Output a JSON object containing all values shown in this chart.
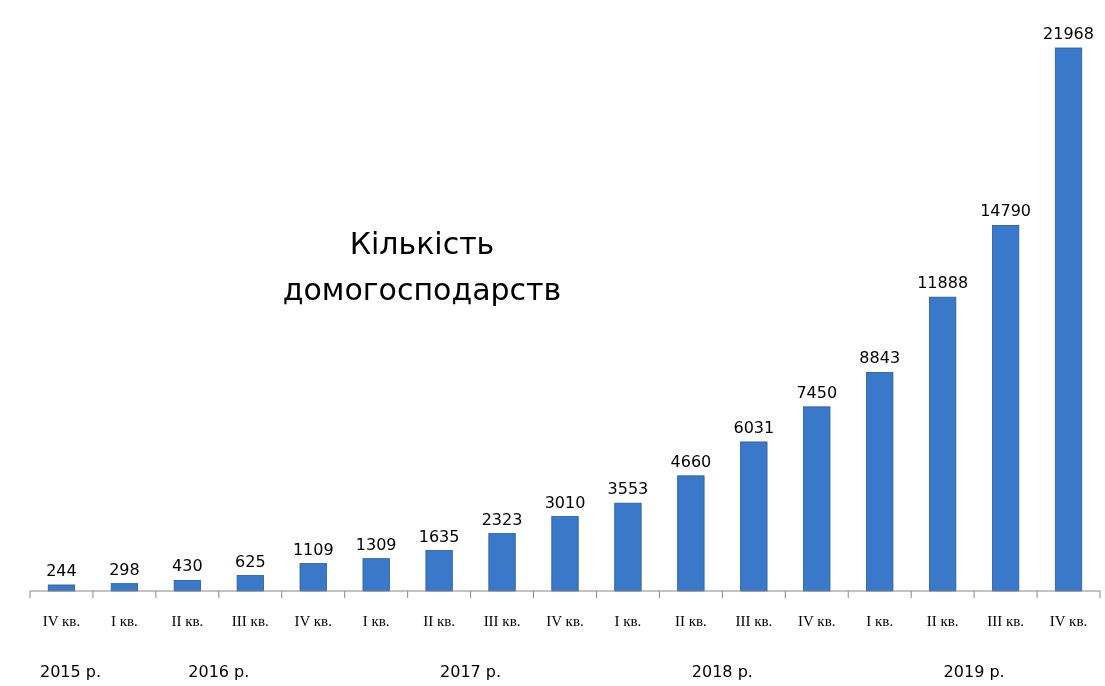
{
  "chart_data": {
    "type": "bar",
    "title": "Кількість\nдомогосподарств",
    "categories": [
      "IV кв.",
      "I кв.",
      "II кв.",
      "III кв.",
      "IV кв.",
      "I кв.",
      "II кв.",
      "III кв.",
      "IV кв.",
      "I кв.",
      "II кв.",
      "III кв.",
      "IV кв.",
      "I кв.",
      "II кв.",
      "III кв.",
      "IV кв."
    ],
    "values": [
      244,
      298,
      430,
      625,
      1109,
      1309,
      1635,
      2323,
      3010,
      3553,
      4660,
      6031,
      7450,
      8843,
      11888,
      14790,
      21968
    ],
    "color": "#3a78c9",
    "data_labels": true,
    "annotations": [
      "2015 р.",
      "2016 р.",
      "2017 р.",
      "2018 р.",
      "2019 р."
    ]
  }
}
